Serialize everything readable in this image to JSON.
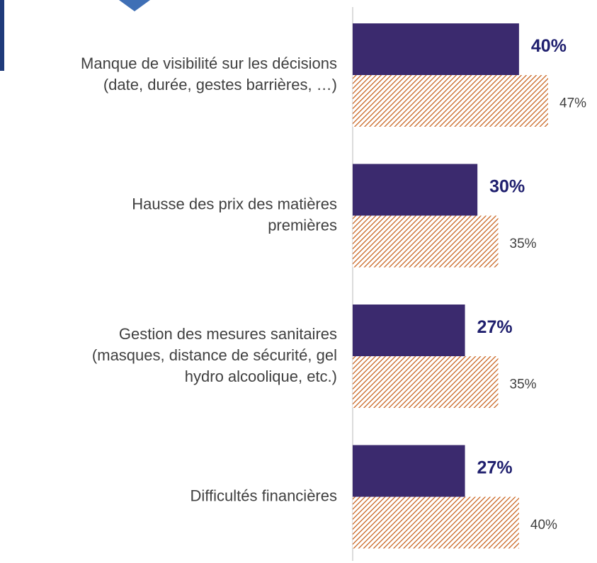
{
  "chart_data": {
    "type": "bar",
    "orientation": "horizontal",
    "categories": [
      [
        "Manque de visibilité sur les décisions",
        "(date, durée, gestes barrières, …)"
      ],
      [
        "Hausse des prix des matières",
        "premières"
      ],
      [
        "Gestion des mesures sanitaires",
        "(masques, distance de sécurité, gel",
        "hydro alcoolique, etc.)"
      ],
      [
        "Difficultés financières"
      ]
    ],
    "series": [
      {
        "color": "#3b2a6e",
        "values": [
          40,
          30,
          27,
          27
        ],
        "value_labels": [
          "40%",
          "30%",
          "27%",
          "27%"
        ]
      },
      {
        "color": "#c55a11",
        "pattern": "hatch",
        "values": [
          47,
          35,
          35,
          40
        ],
        "value_labels": [
          "47%",
          "35%",
          "35%",
          "40%"
        ]
      }
    ]
  }
}
